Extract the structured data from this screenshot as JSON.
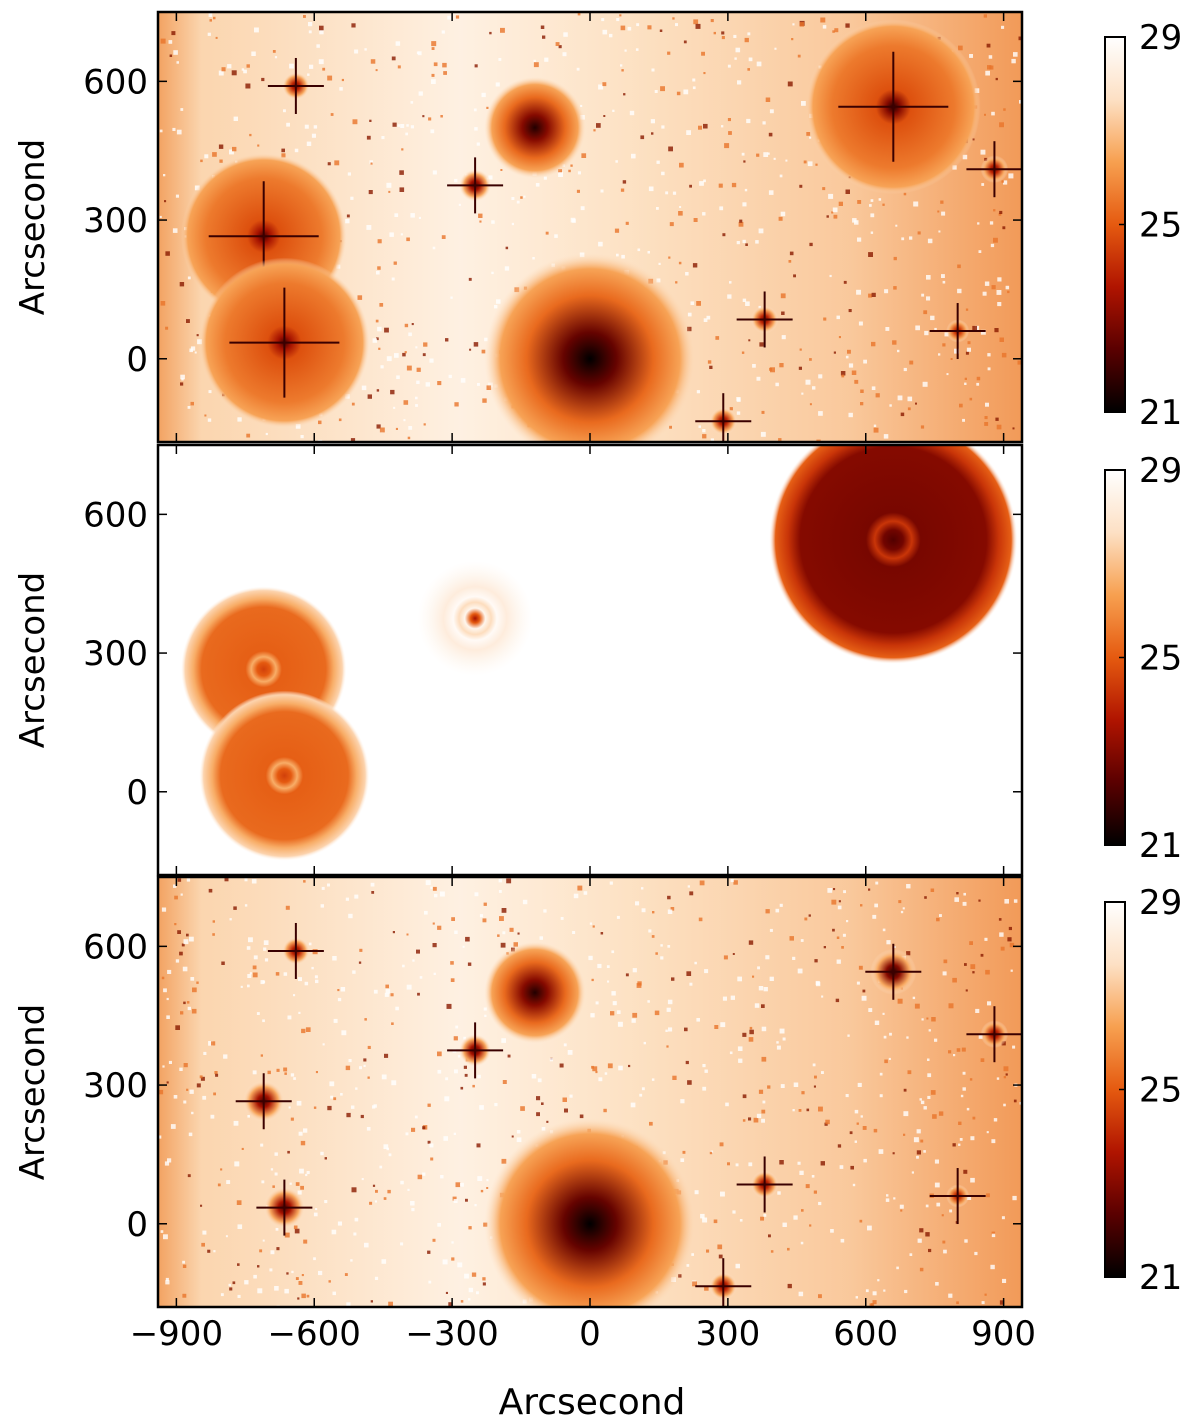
{
  "figure": {
    "shared_xlabel": "Arcsecond",
    "colormap": "gist_heat_r",
    "colormap_stops": [
      "#000000",
      "#5a0000",
      "#b01400",
      "#e55a10",
      "#f7a050",
      "#fde0c4",
      "#ffffff"
    ]
  },
  "chart_data": [
    {
      "type": "heatmap",
      "panel": "top",
      "ylabel": "Arcsecond",
      "xlim": [
        -940,
        940
      ],
      "ylim": [
        -180,
        750
      ],
      "x_ticks": [
        -900,
        -600,
        -300,
        0,
        300,
        600,
        900
      ],
      "y_ticks": [
        0,
        300,
        600
      ],
      "y_tick_labels": [
        "0",
        "300",
        "600"
      ],
      "colorbar": {
        "min": 21,
        "max": 29,
        "ticks": [
          "21",
          "25",
          "29"
        ]
      },
      "background": "noisy-sky",
      "sources": [
        {
          "x": 0,
          "y": 0,
          "radius": 230,
          "peak": 21,
          "kind": "galaxy"
        },
        {
          "x": 660,
          "y": 545,
          "radius": 190,
          "peak": 21.5,
          "kind": "halo-star"
        },
        {
          "x": -710,
          "y": 265,
          "radius": 180,
          "peak": 22,
          "kind": "halo-star"
        },
        {
          "x": -665,
          "y": 35,
          "radius": 185,
          "peak": 22,
          "kind": "halo-star"
        },
        {
          "x": -120,
          "y": 500,
          "radius": 110,
          "peak": 21.5,
          "kind": "spiral"
        },
        {
          "x": -250,
          "y": 375,
          "radius": 35,
          "peak": 22,
          "kind": "star"
        },
        {
          "x": -640,
          "y": 590,
          "radius": 30,
          "peak": 22.5,
          "kind": "star"
        },
        {
          "x": 380,
          "y": 85,
          "radius": 30,
          "peak": 22.5,
          "kind": "star"
        },
        {
          "x": 290,
          "y": -135,
          "radius": 30,
          "peak": 22.5,
          "kind": "star"
        },
        {
          "x": 880,
          "y": 410,
          "radius": 30,
          "peak": 22.5,
          "kind": "star"
        },
        {
          "x": 800,
          "y": 60,
          "radius": 25,
          "peak": 23,
          "kind": "star"
        }
      ]
    },
    {
      "type": "heatmap",
      "panel": "middle",
      "ylabel": "Arcsecond",
      "xlim": [
        -940,
        940
      ],
      "ylim": [
        -180,
        750
      ],
      "x_ticks": [
        -900,
        -600,
        -300,
        0,
        300,
        600,
        900
      ],
      "y_ticks": [
        0,
        300,
        600
      ],
      "y_tick_labels": [
        "0",
        "300",
        "600"
      ],
      "colorbar": {
        "min": 21,
        "max": 29,
        "ticks": [
          "21",
          "25",
          "29"
        ]
      },
      "background": "white",
      "sources": [
        {
          "x": 660,
          "y": 545,
          "radius": 270,
          "peak": 22.2,
          "kind": "model-halo"
        },
        {
          "x": -250,
          "y": 375,
          "radius": 125,
          "peak": 23.5,
          "kind": "model-halo-faint"
        },
        {
          "x": -710,
          "y": 265,
          "radius": 180,
          "peak": 24.5,
          "kind": "model-halo"
        },
        {
          "x": -665,
          "y": 35,
          "radius": 185,
          "peak": 24.5,
          "kind": "model-halo"
        }
      ]
    },
    {
      "type": "heatmap",
      "panel": "bottom",
      "ylabel": "Arcsecond",
      "xlabel": "Arcsecond",
      "xlim": [
        -940,
        940
      ],
      "ylim": [
        -180,
        750
      ],
      "x_ticks": [
        -900,
        -600,
        -300,
        0,
        300,
        600,
        900
      ],
      "x_tick_labels": [
        "−900",
        "−600",
        "−300",
        "0",
        "300",
        "600",
        "900"
      ],
      "y_ticks": [
        0,
        300,
        600
      ],
      "y_tick_labels": [
        "0",
        "300",
        "600"
      ],
      "colorbar": {
        "min": 21,
        "max": 29,
        "ticks": [
          "21",
          "25",
          "29"
        ]
      },
      "background": "noisy-sky",
      "sources": [
        {
          "x": 0,
          "y": 0,
          "radius": 230,
          "peak": 21,
          "kind": "galaxy"
        },
        {
          "x": 660,
          "y": 545,
          "radius": 50,
          "peak": 21.5,
          "kind": "star"
        },
        {
          "x": -710,
          "y": 265,
          "radius": 45,
          "peak": 22,
          "kind": "star"
        },
        {
          "x": -665,
          "y": 35,
          "radius": 45,
          "peak": 22,
          "kind": "star"
        },
        {
          "x": -120,
          "y": 500,
          "radius": 110,
          "peak": 21.5,
          "kind": "spiral"
        },
        {
          "x": -250,
          "y": 375,
          "radius": 35,
          "peak": 22,
          "kind": "star"
        },
        {
          "x": -640,
          "y": 590,
          "radius": 30,
          "peak": 22.5,
          "kind": "star"
        },
        {
          "x": 380,
          "y": 85,
          "radius": 30,
          "peak": 22.5,
          "kind": "star"
        },
        {
          "x": 290,
          "y": -135,
          "radius": 30,
          "peak": 22.5,
          "kind": "star"
        },
        {
          "x": 880,
          "y": 410,
          "radius": 30,
          "peak": 22.5,
          "kind": "star"
        },
        {
          "x": 800,
          "y": 60,
          "radius": 25,
          "peak": 23,
          "kind": "star"
        }
      ]
    }
  ]
}
